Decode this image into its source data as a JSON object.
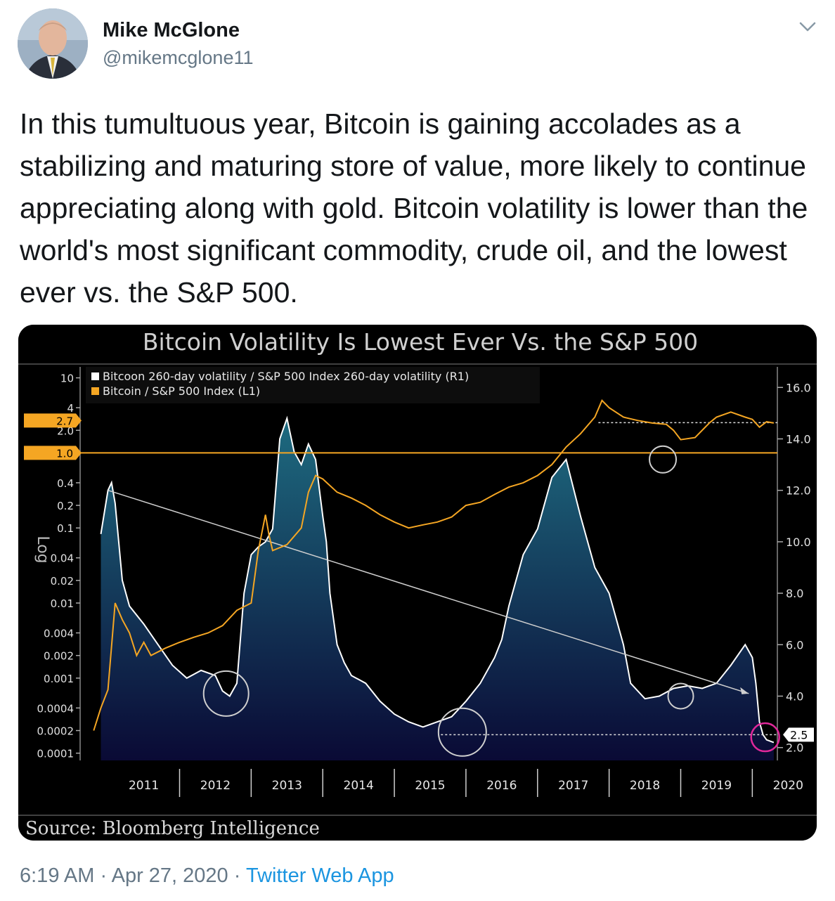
{
  "author": {
    "name": "Mike McGlone",
    "handle": "@mikemcglone11"
  },
  "tweet": {
    "text": "In this tumultuous year, Bitcoin is gaining accolades as a stabilizing and maturing store of value, more likely to continue appreciating along with gold. Bitcoin volatility is lower than the world's most significant commodity, crude oil, and the lowest ever vs. the S&P 500.",
    "time": "6:19 AM",
    "sep1": "·",
    "date": "Apr 27, 2020",
    "sep2": "·",
    "app": "Twitter Web App"
  },
  "colors": {
    "orange": "#f5a623",
    "white_line": "#ffffff",
    "area_top": "#1e6b80",
    "area_bottom": "#0a0a35",
    "circle_magenta": "#e0289a",
    "link_blue": "#1b95e0"
  },
  "chart_data": {
    "type": "line",
    "title": "Bitcoin Volatility Is Lowest Ever Vs. the S&P 500",
    "source": "Source: Bloomberg Intelligence",
    "left_axis_label": "Log",
    "legend": [
      {
        "text": "Bitcoon 260-day volatility / S&P 500 Index 260-day volatility (R1)",
        "color": "#ffffff"
      },
      {
        "text": "Bitcoin / S&P 500 Index (L1)",
        "color": "#f5a623"
      }
    ],
    "x_labels": [
      "2011",
      "2012",
      "2013",
      "2014",
      "2015",
      "2016",
      "2017",
      "2018",
      "2019",
      "2020"
    ],
    "left_ticks": [
      "10",
      "4",
      "2.0",
      "0.4",
      "0.2",
      "0.1",
      "0.04",
      "0.02",
      "0.01",
      "0.004",
      "0.002",
      "0.001",
      "0.0004",
      "0.0002",
      "0.0001"
    ],
    "left_ticks_values": [
      10,
      4,
      2,
      0.4,
      0.2,
      0.1,
      0.04,
      0.02,
      0.01,
      0.004,
      0.002,
      0.001,
      0.0004,
      0.0002,
      0.0001
    ],
    "left_highlights": [
      "2.7",
      "1.0"
    ],
    "right_ticks": [
      "16.0",
      "14.0",
      "12.0",
      "10.0",
      "8.0",
      "6.0",
      "4.0",
      "2.0"
    ],
    "right_ticks_values": [
      16,
      14,
      12,
      10,
      8,
      6,
      4,
      2
    ],
    "right_highlight": "2.5",
    "ratio_series": {
      "name": "Bitcoon 260-day volatility / S&P 500 Index 260-day volatility (R1)",
      "axis": "right",
      "x": [
        2010.9,
        2011.0,
        2011.05,
        2011.1,
        2011.2,
        2011.3,
        2011.5,
        2011.7,
        2011.9,
        2012.1,
        2012.3,
        2012.5,
        2012.6,
        2012.7,
        2012.8,
        2012.9,
        2013.0,
        2013.1,
        2013.2,
        2013.3,
        2013.4,
        2013.5,
        2013.6,
        2013.7,
        2013.8,
        2013.9,
        2014.0,
        2014.05,
        2014.1,
        2014.2,
        2014.3,
        2014.4,
        2014.6,
        2014.8,
        2015.0,
        2015.2,
        2015.4,
        2015.6,
        2015.8,
        2016.0,
        2016.2,
        2016.4,
        2016.5,
        2016.6,
        2016.8,
        2017.0,
        2017.2,
        2017.4,
        2017.6,
        2017.8,
        2018.0,
        2018.05,
        2018.1,
        2018.2,
        2018.3,
        2018.5,
        2018.7,
        2018.9,
        2019.1,
        2019.3,
        2019.5,
        2019.7,
        2019.9,
        2020.0,
        2020.05,
        2020.1,
        2020.15,
        2020.2,
        2020.3
      ],
      "y": [
        10.3,
        12.0,
        12.3,
        11.5,
        8.5,
        7.5,
        6.8,
        6.0,
        5.2,
        4.7,
        5.0,
        4.8,
        4.2,
        4.0,
        4.5,
        8.0,
        9.5,
        9.8,
        10.0,
        10.5,
        14.0,
        14.8,
        13.5,
        13.0,
        13.8,
        13.2,
        11.0,
        10.0,
        8.0,
        6.0,
        5.3,
        4.8,
        4.5,
        3.8,
        3.3,
        3.0,
        2.8,
        3.0,
        3.2,
        3.8,
        4.5,
        5.5,
        6.2,
        7.5,
        9.5,
        10.5,
        12.5,
        13.2,
        11.0,
        9.0,
        8.0,
        7.5,
        7.0,
        6.0,
        4.5,
        3.9,
        4.0,
        4.3,
        4.4,
        4.3,
        4.5,
        5.2,
        6.0,
        5.5,
        4.5,
        3.0,
        2.5,
        2.3,
        2.2
      ]
    },
    "ratio_trendline": {
      "x": [
        2011.0,
        2019.95
      ],
      "y": [
        12.0,
        4.1
      ]
    },
    "price_ratio_series": {
      "name": "Bitcoin / S&P 500 Index (L1)",
      "axis": "left",
      "x": [
        2010.8,
        2010.9,
        2011.0,
        2011.1,
        2011.2,
        2011.3,
        2011.4,
        2011.5,
        2011.6,
        2011.8,
        2012.0,
        2012.2,
        2012.4,
        2012.6,
        2012.8,
        2013.0,
        2013.1,
        2013.2,
        2013.25,
        2013.3,
        2013.5,
        2013.7,
        2013.8,
        2013.9,
        2014.0,
        2014.2,
        2014.4,
        2014.6,
        2014.8,
        2015.0,
        2015.2,
        2015.4,
        2015.6,
        2015.8,
        2016.0,
        2016.2,
        2016.4,
        2016.6,
        2016.8,
        2017.0,
        2017.2,
        2017.4,
        2017.6,
        2017.8,
        2017.9,
        2018.0,
        2018.2,
        2018.4,
        2018.6,
        2018.8,
        2018.9,
        2019.0,
        2019.2,
        2019.4,
        2019.5,
        2019.7,
        2019.9,
        2020.0,
        2020.1,
        2020.2,
        2020.3
      ],
      "y": [
        0.0002,
        0.0004,
        0.0007,
        0.01,
        0.006,
        0.004,
        0.002,
        0.003,
        0.002,
        0.0025,
        0.003,
        0.0035,
        0.004,
        0.005,
        0.008,
        0.01,
        0.05,
        0.15,
        0.08,
        0.05,
        0.06,
        0.1,
        0.3,
        0.5,
        0.45,
        0.3,
        0.25,
        0.2,
        0.15,
        0.12,
        0.1,
        0.11,
        0.12,
        0.14,
        0.2,
        0.22,
        0.28,
        0.35,
        0.4,
        0.5,
        0.7,
        1.2,
        1.8,
        3.0,
        5.0,
        4.0,
        3.0,
        2.7,
        2.5,
        2.4,
        2.0,
        1.5,
        1.6,
        2.5,
        3.0,
        3.5,
        3.0,
        2.8,
        2.2,
        2.6,
        2.5
      ]
    },
    "legend_position": "top-left",
    "grid": false
  }
}
